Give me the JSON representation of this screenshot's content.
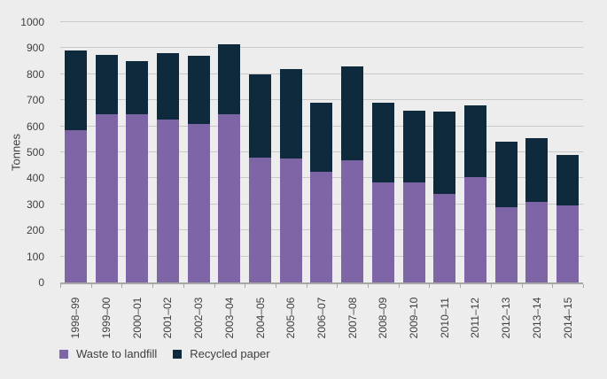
{
  "chart_data": {
    "type": "bar",
    "stacked": true,
    "title": "",
    "xlabel": "",
    "ylabel": "Tonnes",
    "ylim": [
      0,
      1000
    ],
    "yticks": [
      0,
      100,
      200,
      300,
      400,
      500,
      600,
      700,
      800,
      900,
      1000
    ],
    "grid": true,
    "legend_position": "bottom-left",
    "categories": [
      "1998–99",
      "1999–00",
      "2000–01",
      "2001–02",
      "2002–03",
      "2003–04",
      "2004–05",
      "2005–06",
      "2006–07",
      "2007–08",
      "2008–09",
      "2009–10",
      "2010–11",
      "2011–12",
      "2012–13",
      "2013–14",
      "2014–15"
    ],
    "series": [
      {
        "name": "Waste to landfill",
        "color": "#7e65a6",
        "values": [
          585,
          645,
          645,
          625,
          610,
          645,
          480,
          475,
          425,
          470,
          385,
          385,
          340,
          405,
          290,
          310,
          295
        ]
      },
      {
        "name": "Recycled paper",
        "color": "#0f2a3d",
        "values": [
          305,
          230,
          205,
          255,
          260,
          270,
          320,
          345,
          265,
          360,
          305,
          275,
          315,
          275,
          250,
          245,
          195
        ]
      }
    ],
    "totals": [
      890,
      875,
      850,
      880,
      870,
      915,
      800,
      820,
      690,
      830,
      690,
      660,
      655,
      680,
      540,
      555,
      490
    ]
  },
  "colors": {
    "background": "#ededed",
    "gridline": "#c9c9c9",
    "axis_line": "#a6a6a6",
    "text": "#3f3f3f",
    "waste_to_landfill": "#7e65a6",
    "recycled_paper": "#0f2a3d"
  }
}
